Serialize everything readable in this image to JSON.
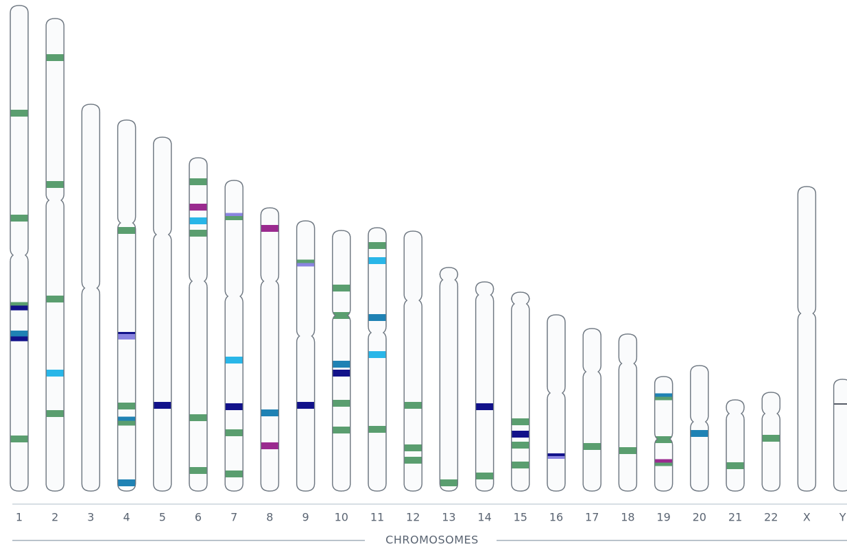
{
  "chromosomes": [
    "1",
    "2",
    "3",
    "4",
    "5",
    "6",
    "7",
    "8",
    "9",
    "10",
    "11",
    "12",
    "13",
    "14",
    "15",
    "16",
    "17",
    "18",
    "19",
    "20",
    "21",
    "22",
    "X",
    "Y"
  ],
  "axis_title": "CHROMOSOMES"
}
